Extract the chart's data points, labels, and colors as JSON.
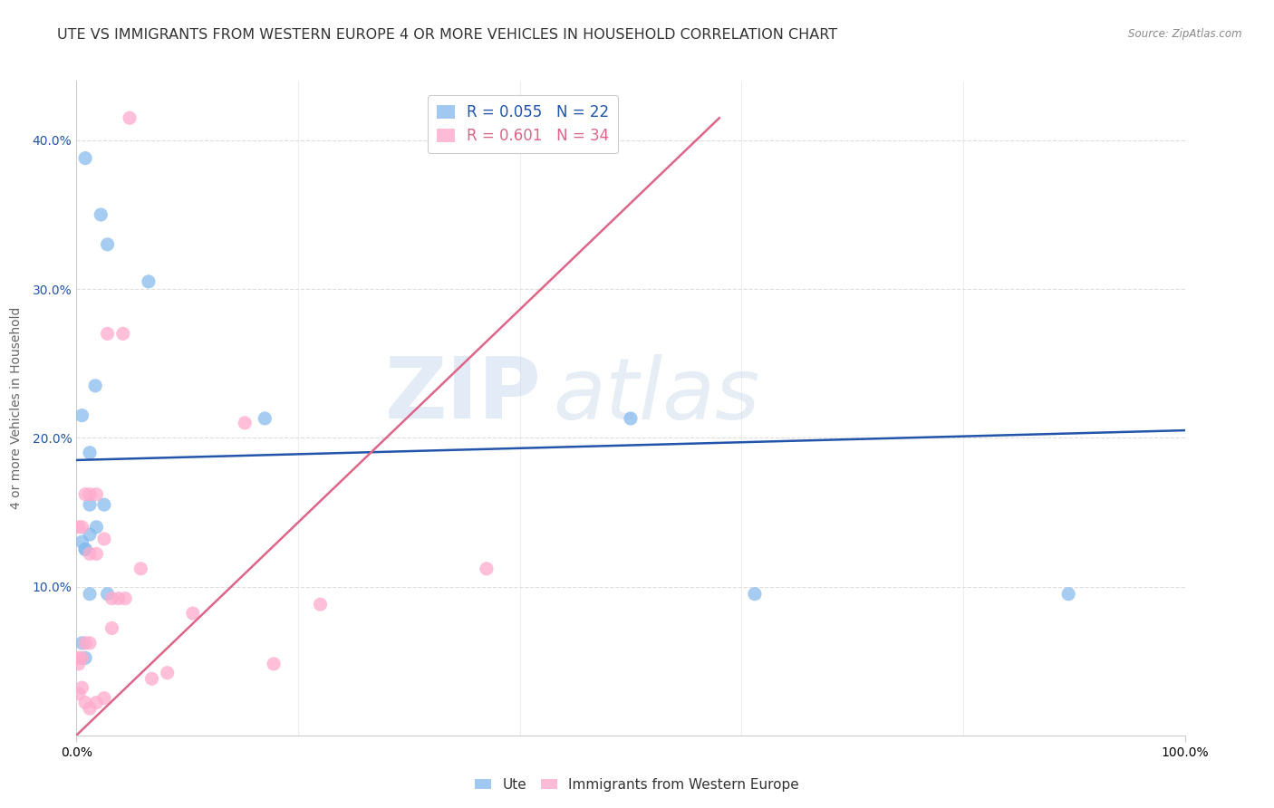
{
  "title": "UTE VS IMMIGRANTS FROM WESTERN EUROPE 4 OR MORE VEHICLES IN HOUSEHOLD CORRELATION CHART",
  "source": "Source: ZipAtlas.com",
  "ylabel": "4 or more Vehicles in Household",
  "watermark_zip": "ZIP",
  "watermark_atlas": "atlas",
  "xlim": [
    0,
    1.0
  ],
  "ylim": [
    0.0,
    0.44
  ],
  "xtick_positions": [
    0.0,
    1.0
  ],
  "xtick_labels": [
    "0.0%",
    "100.0%"
  ],
  "ytick_positions": [
    0.1,
    0.2,
    0.3,
    0.4
  ],
  "ytick_labels": [
    "10.0%",
    "20.0%",
    "30.0%",
    "40.0%"
  ],
  "ute_scatter_x": [
    0.008,
    0.022,
    0.028,
    0.005,
    0.012,
    0.017,
    0.005,
    0.008,
    0.012,
    0.018,
    0.025,
    0.008,
    0.012,
    0.028,
    0.005,
    0.008,
    0.012,
    0.612,
    0.895,
    0.065,
    0.5,
    0.17
  ],
  "ute_scatter_y": [
    0.388,
    0.35,
    0.33,
    0.215,
    0.19,
    0.235,
    0.13,
    0.125,
    0.135,
    0.14,
    0.155,
    0.125,
    0.095,
    0.095,
    0.062,
    0.052,
    0.155,
    0.095,
    0.095,
    0.305,
    0.213,
    0.213
  ],
  "immigrants_scatter_x": [
    0.028,
    0.042,
    0.002,
    0.005,
    0.008,
    0.012,
    0.018,
    0.012,
    0.018,
    0.025,
    0.032,
    0.038,
    0.044,
    0.002,
    0.005,
    0.008,
    0.012,
    0.002,
    0.005,
    0.008,
    0.012,
    0.018,
    0.025,
    0.032,
    0.37,
    0.22,
    0.058,
    0.082,
    0.068,
    0.048,
    0.152,
    0.105,
    0.002,
    0.178
  ],
  "immigrants_scatter_y": [
    0.27,
    0.27,
    0.14,
    0.14,
    0.162,
    0.162,
    0.162,
    0.122,
    0.122,
    0.132,
    0.092,
    0.092,
    0.092,
    0.052,
    0.052,
    0.062,
    0.062,
    0.028,
    0.032,
    0.022,
    0.018,
    0.022,
    0.025,
    0.072,
    0.112,
    0.088,
    0.112,
    0.042,
    0.038,
    0.415,
    0.21,
    0.082,
    0.048,
    0.048
  ],
  "ute_line_x": [
    0.0,
    1.0
  ],
  "ute_line_y": [
    0.185,
    0.205
  ],
  "immigrants_line_x": [
    0.0,
    0.58
  ],
  "immigrants_line_y": [
    0.0,
    0.415
  ],
  "ute_color": "#88bbee",
  "immigrants_color": "#ffaacc",
  "ute_line_color": "#2255aa",
  "immigrants_line_color": "#dd6688",
  "background_color": "#ffffff",
  "grid_color": "#dddddd",
  "title_fontsize": 11.5,
  "axis_label_fontsize": 10,
  "tick_fontsize": 10,
  "scatter_size": 120,
  "legend_R_ute": "R = 0.055",
  "legend_N_ute": "N = 22",
  "legend_R_imm": "R = 0.601",
  "legend_N_imm": "N = 34",
  "legend_label_ute": "Ute",
  "legend_label_imm": "Immigrants from Western Europe"
}
